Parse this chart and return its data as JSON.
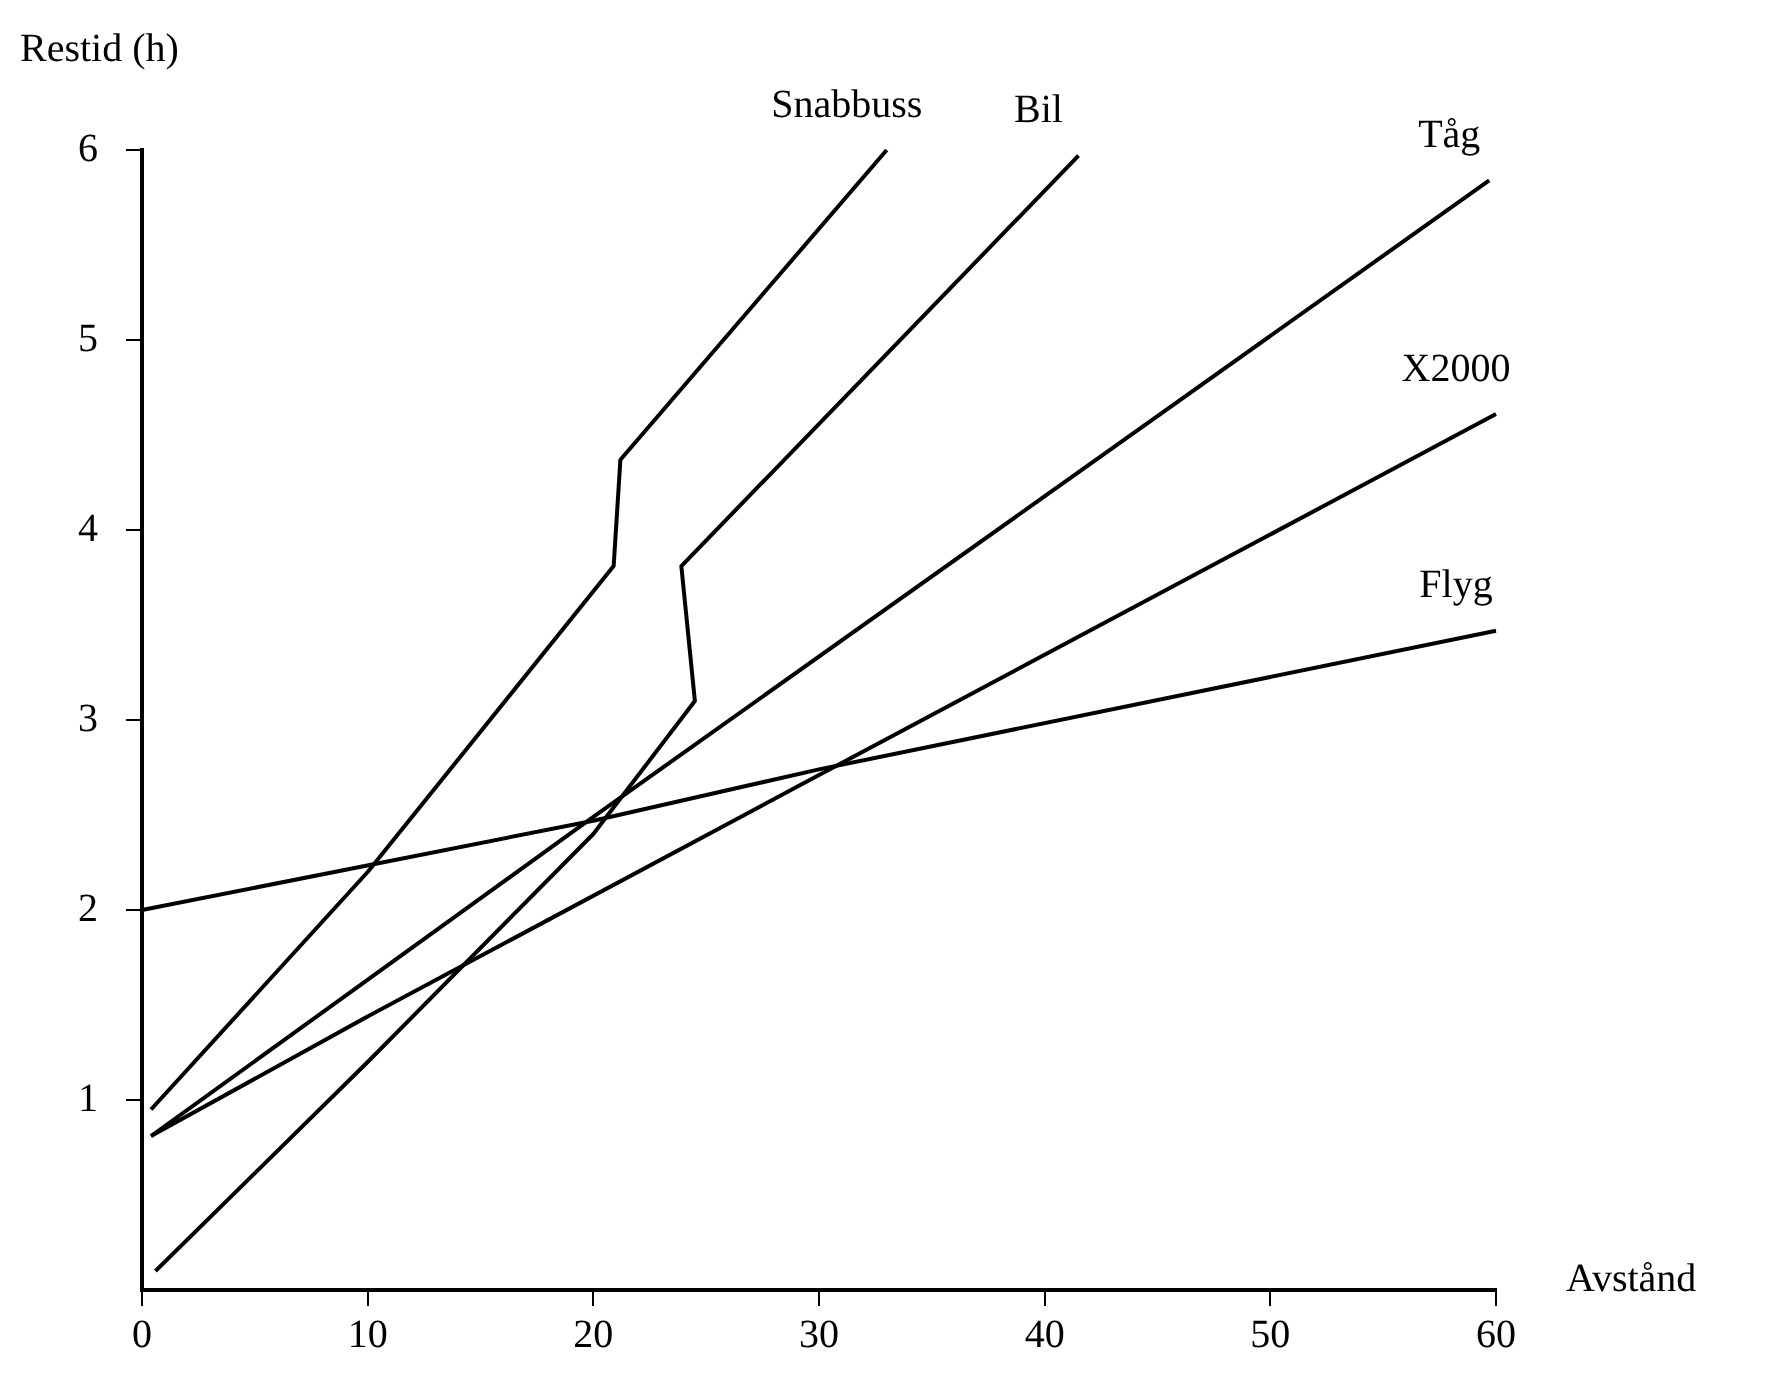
{
  "chart_data": {
    "type": "line",
    "xlabel": "Avstånd",
    "ylabel": "Restid (h)",
    "xlim": [
      0,
      60
    ],
    "ylim": [
      0,
      6
    ],
    "xticks": [
      0,
      10,
      20,
      30,
      40,
      50,
      60
    ],
    "yticks": [
      1,
      2,
      3,
      4,
      5,
      6
    ],
    "grid": false,
    "legend": false,
    "marker": "none",
    "line_style": "solid",
    "series": [
      {
        "name": "Snabbuss",
        "color": "#000000",
        "x": [
          0.4,
          10,
          20.9,
          21.2,
          33
        ],
        "values": [
          0.95,
          2.2,
          3.81,
          4.37,
          6.0
        ]
      },
      {
        "name": "Bil",
        "color": "#000000",
        "x": [
          0.6,
          10,
          20,
          24.5,
          23.9,
          41.5
        ],
        "values": [
          0.1,
          1.2,
          2.4,
          3.1,
          3.81,
          5.97
        ]
      },
      {
        "name": "Tåg",
        "color": "#000000",
        "x": [
          0.4,
          20,
          59.7
        ],
        "values": [
          0.81,
          2.49,
          5.84
        ]
      },
      {
        "name": "X2000",
        "color": "#000000",
        "x": [
          0.4,
          10,
          30,
          60
        ],
        "values": [
          0.81,
          1.44,
          2.71,
          4.61
        ]
      },
      {
        "name": "Flyg",
        "color": "#000000",
        "x": [
          0,
          20,
          30,
          60
        ],
        "values": [
          2.0,
          2.47,
          2.74,
          3.47
        ]
      }
    ]
  }
}
